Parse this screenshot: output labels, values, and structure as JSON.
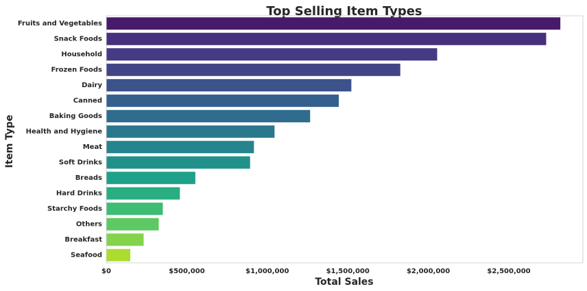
{
  "chart_data": {
    "type": "bar",
    "orientation": "horizontal",
    "title": "Top Selling Item Types",
    "xlabel": "Total Sales",
    "ylabel": "Item Type",
    "categories": [
      "Fruits and Vegetables",
      "Snack Foods",
      "Household",
      "Frozen Foods",
      "Dairy",
      "Canned",
      "Baking Goods",
      "Health and Hygiene",
      "Meat",
      "Soft Drinks",
      "Breads",
      "Hard Drinks",
      "Starchy Foods",
      "Others",
      "Breakfast",
      "Seafood"
    ],
    "values": [
      2820000,
      2732000,
      2055000,
      1826000,
      1522000,
      1444000,
      1266000,
      1045000,
      917000,
      893000,
      553000,
      457000,
      351000,
      326000,
      232000,
      149000
    ],
    "colors": [
      "#481a6c",
      "#472f7d",
      "#443b84",
      "#414487",
      "#3b528b",
      "#355f8d",
      "#2f6c8e",
      "#2a788e",
      "#25848e",
      "#21918c",
      "#1fa088",
      "#28ae80",
      "#3fbc73",
      "#5ec962",
      "#84d44b",
      "#addc30"
    ],
    "xlim": [
      0,
      2960000
    ],
    "xticks": [
      0,
      500000,
      1000000,
      1500000,
      2000000,
      2500000
    ],
    "xtick_labels": [
      "$0",
      "$500,000",
      "$1,000,000",
      "$1,500,000",
      "$2,000,000",
      "$2,500,000"
    ],
    "grid": false,
    "legend": "none"
  }
}
